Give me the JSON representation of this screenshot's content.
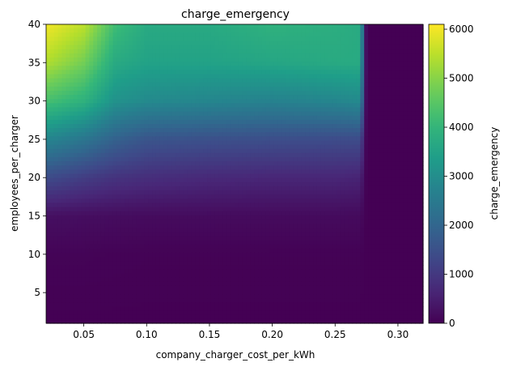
{
  "chart_data": {
    "type": "heatmap",
    "title": "charge_emergency",
    "xlabel": "company_charger_cost_per_kWh",
    "ylabel": "employees_per_charger",
    "xlim": [
      0.02,
      0.32
    ],
    "ylim": [
      1,
      40
    ],
    "x_ticks": [
      "0.05",
      "0.10",
      "0.15",
      "0.20",
      "0.25",
      "0.30"
    ],
    "x_tick_values": [
      0.05,
      0.1,
      0.15,
      0.2,
      0.25,
      0.3
    ],
    "y_ticks": [
      "5",
      "10",
      "15",
      "20",
      "25",
      "30",
      "35",
      "40"
    ],
    "y_tick_values": [
      5,
      10,
      15,
      20,
      25,
      30,
      35,
      40
    ],
    "colorbar": {
      "label": "charge_emergency",
      "range": [
        0,
        6100
      ],
      "ticks": [
        "0",
        "1000",
        "2000",
        "3000",
        "4000",
        "5000",
        "6000"
      ],
      "tick_values": [
        0,
        1000,
        2000,
        3000,
        4000,
        5000,
        6000
      ]
    },
    "colormap": "viridis",
    "grid": false,
    "x": [
      0.02,
      0.05,
      0.075,
      0.1,
      0.15,
      0.2,
      0.25,
      0.27,
      0.275,
      0.3,
      0.32
    ],
    "y": [
      1,
      10,
      15,
      20,
      25,
      30,
      35,
      40
    ],
    "z": [
      [
        0,
        0,
        0,
        0,
        0,
        0,
        0,
        0,
        0,
        0,
        0
      ],
      [
        50,
        50,
        40,
        30,
        30,
        30,
        30,
        30,
        0,
        0,
        0
      ],
      [
        250,
        220,
        200,
        180,
        180,
        170,
        170,
        160,
        0,
        0,
        0
      ],
      [
        1400,
        1100,
        900,
        800,
        700,
        650,
        650,
        600,
        0,
        0,
        0
      ],
      [
        2800,
        2400,
        1900,
        1600,
        1500,
        1450,
        1400,
        1400,
        0,
        0,
        0
      ],
      [
        4300,
        3900,
        3100,
        2900,
        2800,
        2700,
        2800,
        2900,
        0,
        0,
        0
      ],
      [
        5400,
        4800,
        3700,
        3500,
        3500,
        3600,
        3700,
        3700,
        0,
        0,
        0
      ],
      [
        6000,
        5500,
        4200,
        3700,
        3700,
        3900,
        3800,
        3700,
        0,
        0,
        0
      ]
    ]
  }
}
